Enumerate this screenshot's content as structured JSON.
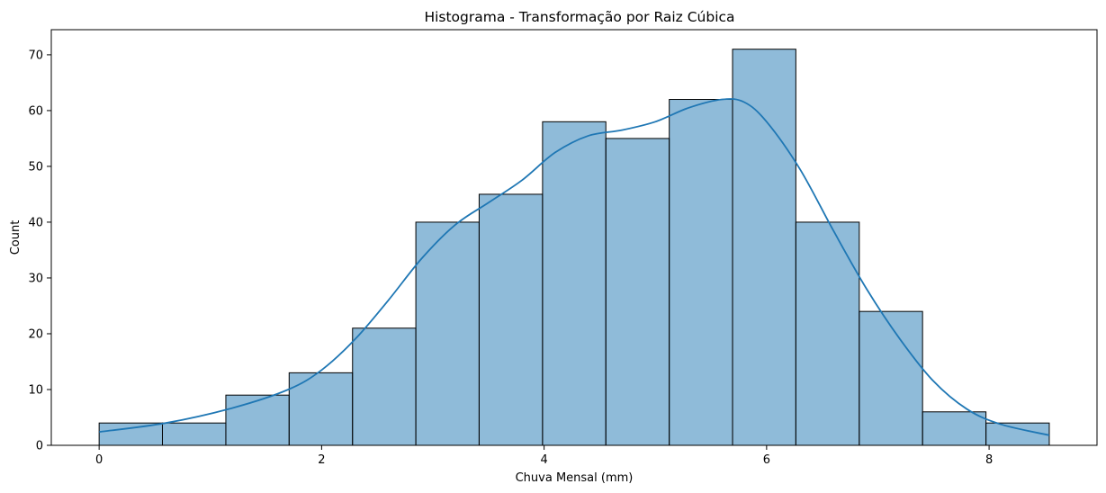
{
  "chart_data": {
    "type": "bar",
    "subtype": "histogram-with-kde",
    "title": "Histograma - Transformação por Raiz Cúbica",
    "xlabel": "Chuva Mensal (mm)",
    "ylabel": "Count",
    "xlim": [
      -0.43,
      8.97
    ],
    "ylim": [
      0,
      74.5
    ],
    "xticks": [
      0,
      2,
      4,
      6,
      8
    ],
    "yticks": [
      0,
      10,
      20,
      30,
      40,
      50,
      60,
      70
    ],
    "grid": false,
    "bin_edges": [
      0.0,
      0.569,
      1.139,
      1.708,
      2.278,
      2.847,
      3.416,
      3.986,
      4.555,
      5.125,
      5.694,
      6.263,
      6.833,
      7.402,
      7.972,
      8.541
    ],
    "values": [
      4,
      4,
      9,
      13,
      21,
      40,
      45,
      58,
      55,
      62,
      71,
      40,
      24,
      6,
      4
    ],
    "kde": {
      "x": [
        0.0,
        0.6,
        1.2,
        1.7,
        2.0,
        2.3,
        2.6,
        2.9,
        3.2,
        3.5,
        3.8,
        4.1,
        4.4,
        4.7,
        5.0,
        5.3,
        5.6,
        5.8,
        6.0,
        6.3,
        6.6,
        6.9,
        7.2,
        7.5,
        7.8,
        8.1,
        8.541
      ],
      "y": [
        2.4,
        4.0,
        6.7,
        10.0,
        13.5,
        19.0,
        26.0,
        33.5,
        39.5,
        43.5,
        47.5,
        52.5,
        55.5,
        56.5,
        58.0,
        60.5,
        62.0,
        61.5,
        58.0,
        49.5,
        38.5,
        28.0,
        19.0,
        11.5,
        6.5,
        3.8,
        1.8
      ]
    },
    "colors": {
      "bar_fill": "#1f77b4",
      "bar_fill_opacity": 0.5,
      "bar_edge": "#000000",
      "kde_line": "#1f77b4"
    }
  }
}
